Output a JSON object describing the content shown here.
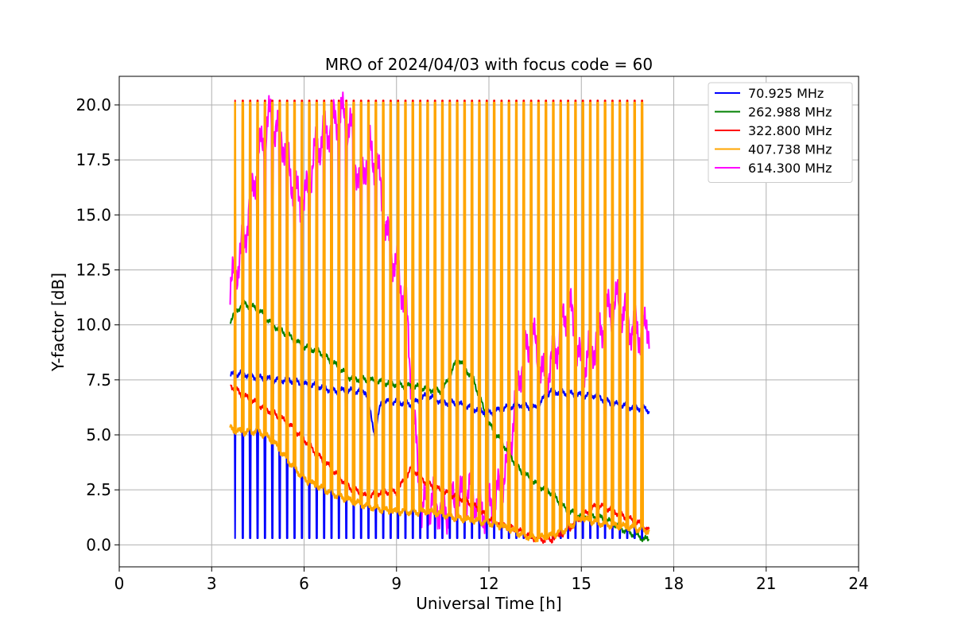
{
  "chart_data": {
    "type": "line",
    "title": "MRO of 2024/04/03 with focus code = 60",
    "xlabel": "Universal Time [h]",
    "ylabel": "Y-factor [dB]",
    "xlim": [
      0,
      24
    ],
    "ylim": [
      -1.0,
      21.3
    ],
    "xticks": [
      0,
      3,
      6,
      9,
      12,
      15,
      18,
      21,
      24
    ],
    "xtick_labels": [
      "0",
      "3",
      "6",
      "9",
      "12",
      "15",
      "18",
      "21",
      "24"
    ],
    "yticks": [
      0.0,
      2.5,
      5.0,
      7.5,
      10.0,
      12.5,
      15.0,
      17.5,
      20.0
    ],
    "ytick_labels": [
      "0.0",
      "2.5",
      "5.0",
      "7.5",
      "10.0",
      "12.5",
      "15.0",
      "17.5",
      "20.0"
    ],
    "grid": true,
    "legend_position": "top-right",
    "series": [
      {
        "name": "  70.925 MHz",
        "color": "#0000ff",
        "x": [
          3.6,
          4.0,
          4.5,
          5.0,
          5.5,
          6.0,
          6.5,
          7.0,
          7.5,
          8.0,
          8.3,
          8.5,
          9.0,
          9.5,
          10.0,
          10.5,
          11.0,
          11.5,
          12.0,
          12.5,
          13.0,
          13.5,
          14.0,
          14.5,
          15.0,
          15.5,
          16.0,
          16.5,
          17.0,
          17.2
        ],
        "y": [
          7.7,
          7.8,
          7.6,
          7.5,
          7.5,
          7.3,
          7.2,
          7.0,
          7.0,
          7.0,
          5.0,
          6.5,
          6.5,
          6.4,
          6.8,
          6.5,
          6.4,
          6.2,
          6.0,
          6.2,
          6.4,
          6.2,
          7.0,
          6.9,
          6.8,
          6.8,
          6.4,
          6.3,
          6.2,
          6.1
        ],
        "pulse_low": 0.3,
        "pulse_start": 3.75,
        "pulse_end": 17.1
      },
      {
        "name": "  262.988 MHz",
        "color": "#008000",
        "x": [
          3.6,
          4.0,
          4.5,
          5.0,
          5.5,
          6.0,
          6.5,
          7.0,
          7.5,
          8.0,
          8.5,
          9.0,
          9.5,
          10.0,
          10.5,
          11.0,
          11.5,
          12.0,
          12.5,
          13.0,
          13.5,
          14.0,
          14.5,
          15.0,
          15.5,
          16.0,
          16.5,
          17.0,
          17.2
        ],
        "y": [
          10.2,
          11.0,
          10.7,
          10.0,
          9.5,
          9.0,
          8.8,
          8.2,
          7.6,
          7.5,
          7.4,
          7.3,
          7.2,
          7.1,
          7.0,
          8.5,
          7.5,
          5.5,
          4.5,
          3.4,
          2.8,
          2.4,
          1.6,
          1.3,
          1.3,
          1.0,
          0.6,
          0.3,
          0.2
        ]
      },
      {
        "name": "  322.800 MHz",
        "color": "#ff0000",
        "x": [
          3.6,
          4.0,
          4.5,
          5.0,
          5.5,
          6.0,
          6.5,
          7.0,
          7.5,
          8.0,
          8.5,
          9.0,
          9.5,
          10.0,
          10.5,
          11.0,
          11.5,
          12.0,
          12.5,
          13.0,
          13.5,
          14.0,
          14.5,
          15.0,
          15.5,
          16.0,
          16.5,
          17.0,
          17.2
        ],
        "y": [
          7.3,
          6.8,
          6.4,
          6.0,
          5.5,
          4.8,
          4.0,
          3.3,
          2.6,
          2.2,
          2.4,
          2.4,
          3.5,
          2.8,
          2.4,
          2.2,
          1.8,
          1.2,
          0.9,
          0.6,
          0.3,
          0.2,
          0.6,
          1.3,
          1.8,
          1.6,
          1.2,
          0.9,
          0.6
        ],
        "pulse_high": 20.2,
        "pulse_start": 3.75,
        "pulse_end": 17.1
      },
      {
        "name": "  407.738 MHz",
        "color": "#ffa500",
        "x": [
          3.6,
          4.0,
          4.5,
          5.0,
          5.5,
          6.0,
          6.5,
          7.0,
          7.5,
          8.0,
          8.5,
          9.0,
          9.5,
          10.0,
          10.5,
          11.0,
          11.5,
          12.0,
          12.5,
          13.0,
          13.5,
          14.0,
          14.5,
          15.0,
          15.5,
          16.0,
          16.5,
          17.0,
          17.2
        ],
        "y": [
          5.3,
          5.1,
          5.2,
          4.7,
          3.8,
          3.0,
          2.6,
          2.3,
          2.0,
          1.8,
          1.6,
          1.5,
          1.5,
          1.5,
          1.4,
          1.2,
          1.1,
          1.0,
          0.8,
          0.5,
          0.3,
          0.4,
          0.7,
          1.2,
          1.0,
          0.9,
          0.8,
          0.7,
          0.6
        ],
        "pulse_high": 20.1,
        "pulse_start": 3.75,
        "pulse_end": 17.1
      },
      {
        "name": "  614.300 MHz",
        "color": "#ff00ff",
        "x": [
          3.6,
          4.0,
          4.5,
          4.9,
          5.3,
          5.7,
          6.0,
          6.4,
          6.8,
          7.2,
          7.5,
          7.8,
          8.1,
          8.4,
          8.7,
          9.0,
          9.3,
          9.5,
          9.8,
          10.2,
          10.6,
          11.0,
          11.4,
          11.8,
          12.2,
          12.6,
          13.0,
          13.4,
          13.8,
          14.2,
          14.6,
          15.0,
          15.4,
          15.8,
          16.2,
          16.6,
          17.0,
          17.2
        ],
        "y": [
          11.5,
          13.5,
          17.5,
          19.5,
          18.5,
          16.0,
          15.5,
          18.0,
          19.0,
          19.5,
          19.0,
          16.5,
          18.0,
          17.0,
          14.0,
          12.5,
          11.0,
          7.0,
          1.5,
          2.0,
          1.5,
          2.0,
          2.5,
          1.5,
          2.0,
          3.5,
          8.0,
          9.5,
          7.5,
          9.0,
          11.0,
          8.0,
          9.0,
          10.5,
          11.0,
          10.0,
          9.5,
          10.0
        ],
        "pulse_start": 3.75,
        "pulse_end": 12.8
      }
    ]
  }
}
